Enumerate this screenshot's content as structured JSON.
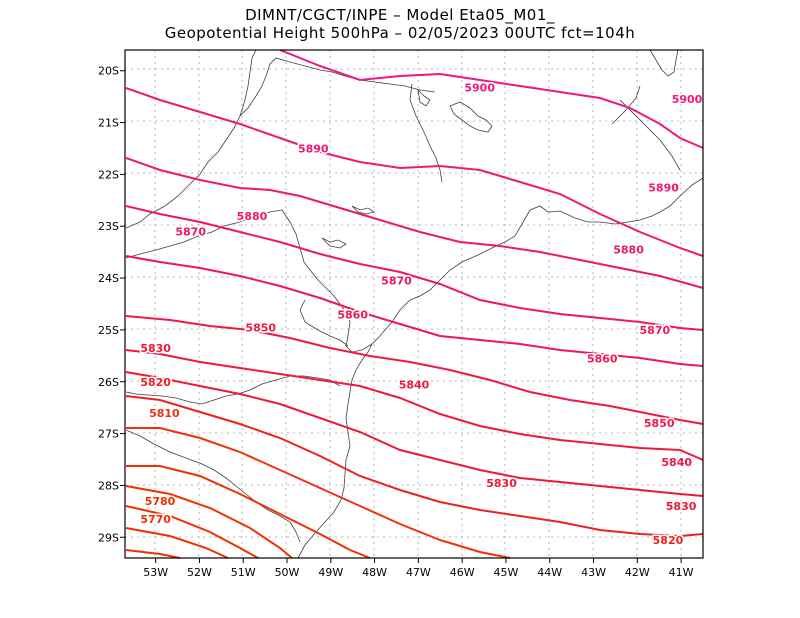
{
  "title": {
    "line1": "DIMNT/CGCT/INPE –  Model Eta05_M01_",
    "line2": "Geopotential Height 500hPa –  02/05/2023 00UTC fct=104h"
  },
  "colors": {
    "frame": "#000000",
    "grid": "#b4b4b4",
    "coast": "#404040",
    "contour_scale": [
      {
        "value": 5770,
        "color": "#f03000"
      },
      {
        "value": 5780,
        "color": "#f03000"
      },
      {
        "value": 5790,
        "color": "#f03000"
      },
      {
        "value": 5800,
        "color": "#f03000"
      },
      {
        "value": 5810,
        "color": "#f23010"
      },
      {
        "value": 5820,
        "color": "#f02020"
      },
      {
        "value": 5830,
        "color": "#f01838"
      },
      {
        "value": 5840,
        "color": "#f01840"
      },
      {
        "value": 5850,
        "color": "#f01848"
      },
      {
        "value": 5860,
        "color": "#f01850"
      },
      {
        "value": 5870,
        "color": "#f01858"
      },
      {
        "value": 5880,
        "color": "#f01868"
      },
      {
        "value": 5890,
        "color": "#f01870"
      },
      {
        "value": 5900,
        "color": "#f01880"
      }
    ]
  },
  "map": {
    "lon_range": [
      -53.7,
      -40.5
    ],
    "lat_range": [
      -29.4,
      -19.6
    ],
    "x_ticks": [
      {
        "lon": -53,
        "label": "53W"
      },
      {
        "lon": -52,
        "label": "52W"
      },
      {
        "lon": -51,
        "label": "51W"
      },
      {
        "lon": -50,
        "label": "50W"
      },
      {
        "lon": -49,
        "label": "49W"
      },
      {
        "lon": -48,
        "label": "48W"
      },
      {
        "lon": -47,
        "label": "47W"
      },
      {
        "lon": -46,
        "label": "46W"
      },
      {
        "lon": -45,
        "label": "45W"
      },
      {
        "lon": -44,
        "label": "44W"
      },
      {
        "lon": -43,
        "label": "43W"
      },
      {
        "lon": -42,
        "label": "42W"
      },
      {
        "lon": -41,
        "label": "41W"
      }
    ],
    "y_ticks": [
      {
        "lat": -20,
        "label": "20S"
      },
      {
        "lat": -21,
        "label": "21S"
      },
      {
        "lat": -22,
        "label": "22S"
      },
      {
        "lat": -23,
        "label": "23S"
      },
      {
        "lat": -24,
        "label": "24S"
      },
      {
        "lat": -25,
        "label": "25S"
      },
      {
        "lat": -26,
        "label": "26S"
      },
      {
        "lat": -27,
        "label": "27S"
      },
      {
        "lat": -28,
        "label": "28S"
      },
      {
        "lat": -29,
        "label": "29S"
      }
    ],
    "contour_labels": [
      {
        "text": "5900",
        "lon": -45.6,
        "lat": -20.32,
        "value": 5900
      },
      {
        "text": "5900",
        "lon": -40.0,
        "lat": -20.55,
        "value": 5900
      },
      {
        "text": "5890",
        "lon": -49.4,
        "lat": -21.5,
        "value": 5890
      },
      {
        "text": "5890",
        "lon": -41.4,
        "lat": -22.25,
        "value": 5890
      },
      {
        "text": "5880",
        "lon": -50.8,
        "lat": -22.8,
        "value": 5880
      },
      {
        "text": "5880",
        "lon": -42.2,
        "lat": -23.45,
        "value": 5880
      },
      {
        "text": "5870",
        "lon": -52.2,
        "lat": -23.1,
        "value": 5870
      },
      {
        "text": "5870",
        "lon": -47.5,
        "lat": -24.05,
        "value": 5870
      },
      {
        "text": "5870",
        "lon": -41.6,
        "lat": -25.0,
        "value": 5870
      },
      {
        "text": "5860",
        "lon": -48.5,
        "lat": -24.7,
        "value": 5860
      },
      {
        "text": "5860",
        "lon": -42.8,
        "lat": -25.55,
        "value": 5860
      },
      {
        "text": "5850",
        "lon": -50.6,
        "lat": -24.95,
        "value": 5850
      },
      {
        "text": "5850",
        "lon": -41.5,
        "lat": -26.8,
        "value": 5850
      },
      {
        "text": "5840",
        "lon": -47.1,
        "lat": -26.05,
        "value": 5840
      },
      {
        "text": "5840",
        "lon": -41.1,
        "lat": -27.55,
        "value": 5840
      },
      {
        "text": "5830",
        "lon": -53.0,
        "lat": -25.35,
        "value": 5830
      },
      {
        "text": "5830",
        "lon": -45.1,
        "lat": -27.95,
        "value": 5830
      },
      {
        "text": "5830",
        "lon": -41.0,
        "lat": -28.4,
        "value": 5830
      },
      {
        "text": "5820",
        "lon": -53.0,
        "lat": -26.0,
        "value": 5820
      },
      {
        "text": "5820",
        "lon": -41.3,
        "lat": -29.05,
        "value": 5820
      },
      {
        "text": "5810",
        "lon": -52.8,
        "lat": -26.6,
        "value": 5810
      },
      {
        "text": "5780",
        "lon": -52.9,
        "lat": -28.3,
        "value": 5780
      },
      {
        "text": "5770",
        "lon": -53.0,
        "lat": -28.65,
        "value": 5770
      }
    ]
  }
}
